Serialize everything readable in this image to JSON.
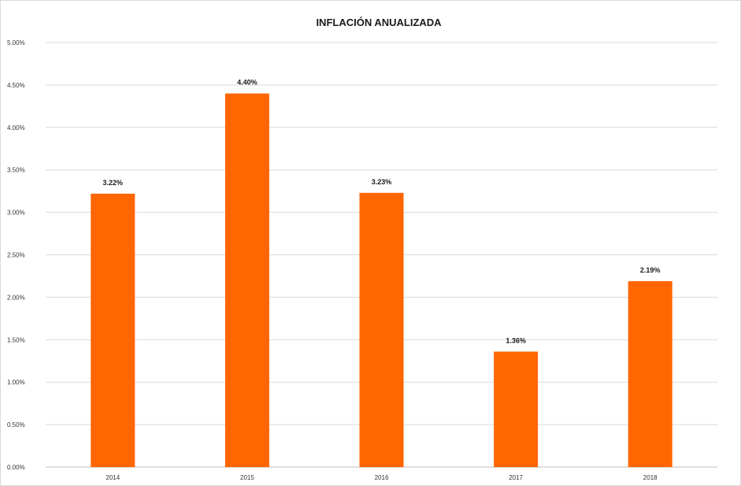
{
  "chart_data": {
    "type": "bar",
    "title": "INFLACIÓN ANUALIZADA",
    "xlabel": "",
    "ylabel": "",
    "categories": [
      "2014",
      "2015",
      "2016",
      "2017",
      "2018"
    ],
    "values": [
      3.22,
      4.4,
      3.23,
      1.36,
      2.19
    ],
    "data_labels": [
      "3.22%",
      "4.40%",
      "3.23%",
      "1.36%",
      "2.19%"
    ],
    "ylim": [
      0,
      5
    ],
    "yticks": [
      "0.00%",
      "0.50%",
      "1.00%",
      "1.50%",
      "2.00%",
      "2.50%",
      "3.00%",
      "3.50%",
      "4.00%",
      "4.50%",
      "5.00%"
    ],
    "grid": true,
    "legend": "none",
    "bar_color": "#ff6600"
  }
}
